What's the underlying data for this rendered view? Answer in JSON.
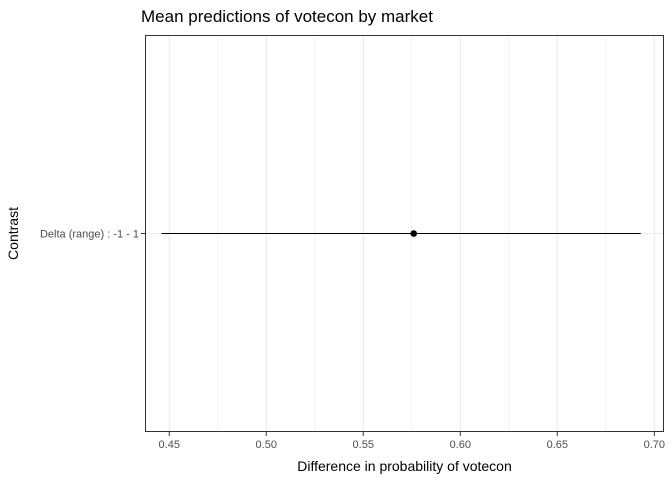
{
  "chart_data": {
    "type": "scatter",
    "title": "Mean predictions of votecon by market",
    "xlabel": "Difference in probability of votecon",
    "ylabel": "Contrast",
    "xlim": [
      0.4375,
      0.705
    ],
    "x_ticks": [
      0.45,
      0.5,
      0.55,
      0.6,
      0.65,
      0.7
    ],
    "x_tick_labels": [
      "0.45",
      "0.50",
      "0.55",
      "0.60",
      "0.65",
      "0.70"
    ],
    "categories": [
      "Delta (range) : -1 - 1"
    ],
    "points": [
      {
        "category": "Delta (range) : -1 - 1",
        "estimate": 0.576,
        "lower": 0.446,
        "upper": 0.693
      }
    ],
    "grid": true,
    "legend": "none",
    "colors": {
      "point": "#000000",
      "grid": "#ebebeb",
      "panel_border": "#333333"
    }
  }
}
